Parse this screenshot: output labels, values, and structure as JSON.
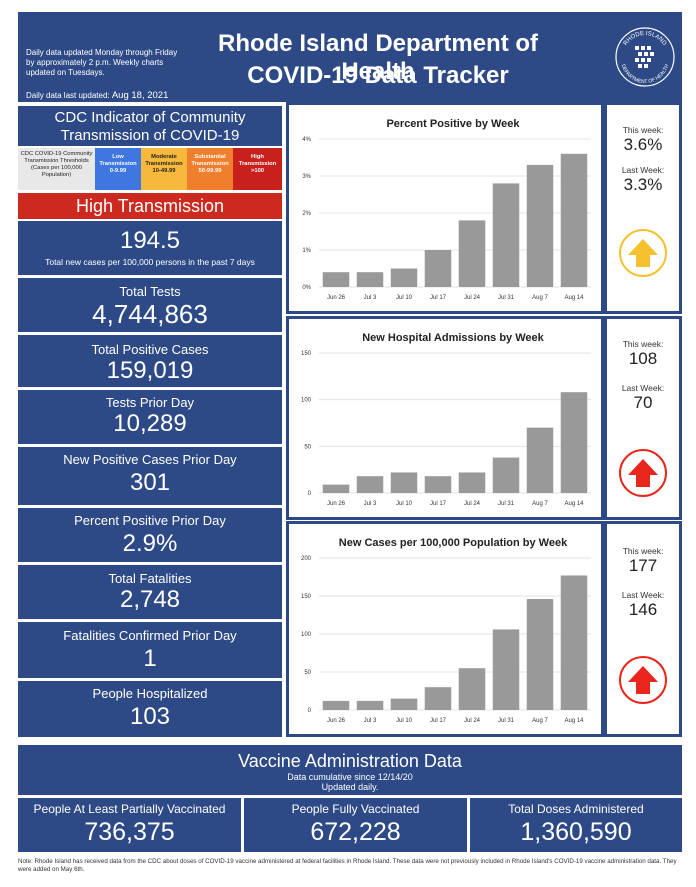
{
  "header": {
    "notes": "Daily data updated Monday through Friday by approximately 2 p.m. Weekly charts updated on Tuesdays.",
    "updated_label": "Daily data last updated:",
    "updated_value": "Aug 18, 2021",
    "title_line1": "Rhode Island Department of Health",
    "title_line2": "COVID-19 Data Tracker",
    "seal_text_top": "RHODE ISLAND",
    "seal_text_bottom": "DEPARTMENT OF HEALTH"
  },
  "cdc": {
    "title": "CDC Indicator of Community Transmission of COVID-19",
    "scale": [
      {
        "label": "CDC COVID-19 Community Transmission Thresholds (Cases per 100,000 Population)",
        "range": ""
      },
      {
        "label": "Low Transmission",
        "range": "0-9.99"
      },
      {
        "label": "Moderate Transmission",
        "range": "10-49.99"
      },
      {
        "label": "Substantial Transmission",
        "range": "50-99.99"
      },
      {
        "label": "High Transmission",
        "range": ">100"
      }
    ],
    "status": "High Transmission",
    "rate_value": "194.5",
    "rate_label": "Total new cases per 100,000 persons in the past 7 days"
  },
  "stats": {
    "total_tests": {
      "label": "Total Tests",
      "value": "4,744,863"
    },
    "total_positive": {
      "label": "Total Positive Cases",
      "value": "159,019"
    },
    "tests_prior": {
      "label": "Tests Prior Day",
      "value": "10,289"
    },
    "new_positive_prior": {
      "label": "New Positive Cases Prior Day",
      "value": "301"
    },
    "percent_positive_prior": {
      "label": "Percent Positive Prior Day",
      "value": "2.9%"
    },
    "total_fatalities": {
      "label": "Total Fatalities",
      "value": "2,748"
    },
    "fatalities_prior": {
      "label": "Fatalities Confirmed Prior Day",
      "value": "1"
    },
    "hospitalized": {
      "label": "People Hospitalized",
      "value": "103"
    }
  },
  "weekly": [
    {
      "this_week_label": "This week:",
      "this_week": "3.6%",
      "last_week_label": "Last Week:",
      "last_week": "3.3%",
      "trend": "up",
      "arrow_color": "#f5c12e"
    },
    {
      "this_week_label": "This week:",
      "this_week": "108",
      "last_week_label": "Last Week:",
      "last_week": "70",
      "trend": "up",
      "arrow_color": "#e8261c"
    },
    {
      "this_week_label": "This week:",
      "this_week": "177",
      "last_week_label": "Last Week:",
      "last_week": "146",
      "trend": "up",
      "arrow_color": "#e8261c"
    }
  ],
  "chart_data": [
    {
      "type": "bar",
      "title": "Percent Positive by Week",
      "categories": [
        "Jun 26",
        "Jul 3",
        "Jul 10",
        "Jul 17",
        "Jul 24",
        "Jul 31",
        "Aug 7",
        "Aug 14"
      ],
      "values": [
        0.4,
        0.4,
        0.5,
        1.0,
        1.8,
        2.8,
        3.3,
        3.6
      ],
      "ylim": [
        0,
        4
      ],
      "yticks": [
        "0%",
        "1%",
        "2%",
        "3%",
        "4%"
      ],
      "ytick_values": [
        0,
        1,
        2,
        3,
        4
      ],
      "xlabel": "",
      "ylabel": "",
      "color": "#999999"
    },
    {
      "type": "bar",
      "title": "New Hospital Admissions by Week",
      "categories": [
        "Jun 26",
        "Jul 3",
        "Jul 10",
        "Jul 17",
        "Jul 24",
        "Jul 31",
        "Aug 7",
        "Aug 14"
      ],
      "values": [
        9,
        18,
        22,
        18,
        22,
        38,
        70,
        108
      ],
      "ylim": [
        0,
        150
      ],
      "yticks": [
        "0",
        "50",
        "100",
        "150"
      ],
      "ytick_values": [
        0,
        50,
        100,
        150
      ],
      "xlabel": "",
      "ylabel": "",
      "color": "#999999"
    },
    {
      "type": "bar",
      "title": "New Cases per 100,000 Population by Week",
      "categories": [
        "Jun 26",
        "Jul 3",
        "Jul 10",
        "Jul 17",
        "Jul 24",
        "Jul 31",
        "Aug 7",
        "Aug 14"
      ],
      "values": [
        12,
        12,
        15,
        30,
        55,
        106,
        146,
        177
      ],
      "ylim": [
        0,
        200
      ],
      "yticks": [
        "0",
        "50",
        "100",
        "150",
        "200"
      ],
      "ytick_values": [
        0,
        50,
        100,
        150,
        200
      ],
      "xlabel": "",
      "ylabel": "",
      "color": "#999999"
    }
  ],
  "vaccine": {
    "title": "Vaccine Administration Data",
    "sub1": "Data cumulative since 12/14/20",
    "sub2": "Updated daily.",
    "boxes": [
      {
        "label": "People At Least Partially Vaccinated",
        "value": "736,375"
      },
      {
        "label": "People Fully Vaccinated",
        "value": "672,228"
      },
      {
        "label": "Total Doses Administered",
        "value": "1,360,590"
      }
    ]
  },
  "note": "Note: Rhode Island has received data from the CDC about doses of COVID-19 vaccine administered at federal facilities in Rhode Island. These data were not previously included in Rhode Island's COVID-19 vaccine administration data. They were added on May 6th."
}
